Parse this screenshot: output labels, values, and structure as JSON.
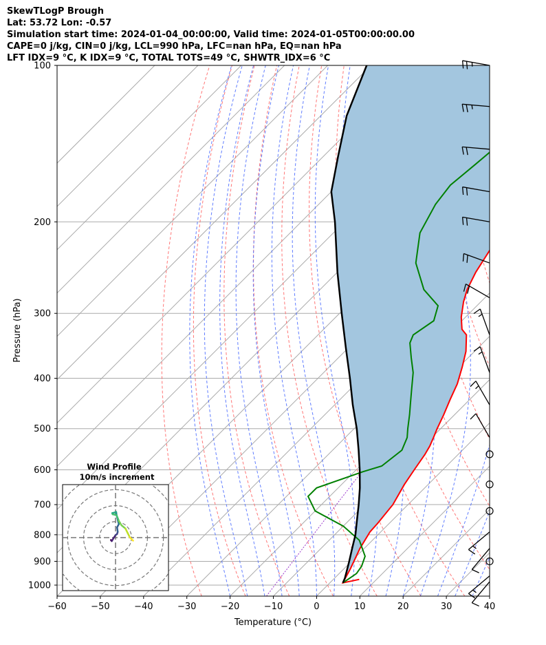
{
  "header": {
    "line1": "SkewTLogP Brough",
    "line2": "Lat: 53.72   Lon: -0.57",
    "line3": "Simulation start time: 2024-01-04_00:00:00, Valid time: 2024-01-05T00:00:00.00",
    "line4": "CAPE=0 j/kg, CIN=0 j/kg, LCL=990 hPa, LFC=nan hPa, EQ=nan hPa",
    "line5": "LFT IDX=9 °C, K IDX=9 °C, TOTAL TOTS=49 °C, SHWTR_IDX=6 °C"
  },
  "chart_data": {
    "type": "line",
    "xlabel": "Temperature (°C)",
    "ylabel": "Pressure (hPa)",
    "xlim": [
      -60,
      40
    ],
    "ylim": [
      1050,
      100
    ],
    "x_ticks": [
      "−60",
      "−50",
      "−40",
      "−30",
      "−20",
      "−10",
      "0",
      "10",
      "20",
      "30",
      "40"
    ],
    "y_ticks": [
      "100",
      "200",
      "300",
      "400",
      "500",
      "600",
      "700",
      "800",
      "900",
      "1000"
    ],
    "y_scale": "log",
    "skew": true,
    "colors": {
      "temperature": "#ff0000",
      "dewpoint": "#008000",
      "parcel": "#000000",
      "cape_fill": "#a3c6df",
      "dry_adiabats": "#ff6666",
      "moist_adiabats": "#4466ff",
      "mixing_ratio": "#9933cc",
      "isotherms": "#aaaaaa",
      "isobars": "#aaaaaa"
    },
    "series": [
      {
        "key": "temperature",
        "points": [
          [
            6,
            975
          ],
          [
            3,
            990
          ],
          [
            1.5,
            930
          ],
          [
            -1,
            850
          ],
          [
            -2.5,
            790
          ],
          [
            -2.7,
            760
          ],
          [
            -3.5,
            700
          ],
          [
            -5.5,
            640
          ],
          [
            -6.6,
            600
          ],
          [
            -7.7,
            560
          ],
          [
            -8.5,
            540
          ],
          [
            -9.6,
            520
          ],
          [
            -10.8,
            500
          ],
          [
            -12.5,
            470
          ],
          [
            -14.5,
            440
          ],
          [
            -16.5,
            410
          ],
          [
            -19.3,
            380
          ],
          [
            -22,
            355
          ],
          [
            -25.7,
            330
          ],
          [
            -28,
            322
          ],
          [
            -31,
            305
          ],
          [
            -34,
            285
          ],
          [
            -36,
            270
          ],
          [
            -38,
            250
          ],
          [
            -40,
            225
          ],
          [
            -41,
            200
          ],
          [
            -43,
            185
          ],
          [
            -45,
            170
          ],
          [
            -47.3,
            150
          ],
          [
            -49,
            135
          ],
          [
            -50.4,
            125
          ],
          [
            -51.5,
            117
          ],
          [
            -52.5,
            110
          ],
          [
            -54,
            100
          ]
        ]
      },
      {
        "key": "dewpoint",
        "points": [
          [
            3,
            990
          ],
          [
            4,
            950
          ],
          [
            3.5,
            920
          ],
          [
            2,
            880
          ],
          [
            -3,
            820
          ],
          [
            -10,
            770
          ],
          [
            -20,
            720
          ],
          [
            -25,
            675
          ],
          [
            -25,
            650
          ],
          [
            -18,
            605
          ],
          [
            -15,
            590
          ],
          [
            -14,
            550
          ],
          [
            -15.7,
            520
          ],
          [
            -17.6,
            500
          ],
          [
            -20.4,
            470
          ],
          [
            -22.5,
            450
          ],
          [
            -25.8,
            420
          ],
          [
            -29.3,
            390
          ],
          [
            -33.2,
            365
          ],
          [
            -36.9,
            342
          ],
          [
            -38,
            330
          ],
          [
            -36.5,
            310
          ],
          [
            -39,
            290
          ],
          [
            -46,
            270
          ],
          [
            -54,
            240
          ],
          [
            -60,
            210
          ],
          [
            -63,
            185
          ],
          [
            -64,
            170
          ],
          [
            -63,
            155
          ],
          [
            -62,
            140
          ],
          [
            -61,
            125
          ],
          [
            -60,
            115
          ],
          [
            -58,
            100
          ]
        ]
      },
      {
        "key": "parcel",
        "points": [
          [
            3,
            990
          ],
          [
            2.4,
            970
          ],
          [
            1.2,
            940
          ],
          [
            -0.5,
            900
          ],
          [
            -2.8,
            850
          ],
          [
            -5.2,
            800
          ],
          [
            -8.2,
            750
          ],
          [
            -11.4,
            700
          ],
          [
            -15,
            650
          ],
          [
            -19.2,
            600
          ],
          [
            -24,
            550
          ],
          [
            -29.4,
            500
          ],
          [
            -35.8,
            450
          ],
          [
            -42.6,
            400
          ],
          [
            -50.5,
            350
          ],
          [
            -59.5,
            300
          ],
          [
            -70,
            250
          ],
          [
            -82.2,
            200
          ],
          [
            -90,
            175
          ],
          [
            -96.5,
            150
          ],
          [
            -104,
            125
          ],
          [
            -111,
            100
          ]
        ]
      }
    ],
    "wind_barbs": [
      {
        "p": 100,
        "speed_kt": 25,
        "dir_deg": 280
      },
      {
        "p": 120,
        "speed_kt": 25,
        "dir_deg": 275
      },
      {
        "p": 145,
        "speed_kt": 20,
        "dir_deg": 275
      },
      {
        "p": 175,
        "speed_kt": 20,
        "dir_deg": 280
      },
      {
        "p": 200,
        "speed_kt": 20,
        "dir_deg": 280
      },
      {
        "p": 240,
        "speed_kt": 20,
        "dir_deg": 290
      },
      {
        "p": 280,
        "speed_kt": 20,
        "dir_deg": 300
      },
      {
        "p": 330,
        "speed_kt": 15,
        "dir_deg": 340
      },
      {
        "p": 390,
        "speed_kt": 15,
        "dir_deg": 340
      },
      {
        "p": 450,
        "speed_kt": 15,
        "dir_deg": 330
      },
      {
        "p": 520,
        "speed_kt": 10,
        "dir_deg": 330
      },
      {
        "p": 560,
        "speed_kt": 0,
        "dir_deg": 0
      },
      {
        "p": 640,
        "speed_kt": 0,
        "dir_deg": 0
      },
      {
        "p": 720,
        "speed_kt": 0,
        "dir_deg": 0
      },
      {
        "p": 790,
        "speed_kt": 15,
        "dir_deg": 230
      },
      {
        "p": 850,
        "speed_kt": 10,
        "dir_deg": 220
      },
      {
        "p": 900,
        "speed_kt": 0,
        "dir_deg": 0
      },
      {
        "p": 960,
        "speed_kt": 15,
        "dir_deg": 230
      },
      {
        "p": 985,
        "speed_kt": 10,
        "dir_deg": 220
      }
    ],
    "hodograph": {
      "title": "Wind Profile",
      "subtitle": "10m/s increment",
      "colormap": "viridis",
      "points": [
        [
          0.4,
          0.8
        ],
        [
          0.6,
          0.5
        ],
        [
          0.8,
          0.3
        ],
        [
          1.5,
          1.5
        ],
        [
          2.5,
          3.0
        ],
        [
          3.2,
          3.5
        ],
        [
          3.5,
          4.5
        ],
        [
          3.2,
          6.5
        ],
        [
          4.0,
          8.0
        ],
        [
          3.5,
          10.0
        ],
        [
          3.0,
          12.0
        ],
        [
          2.8,
          13.5
        ],
        [
          1.0,
          13.0
        ],
        [
          1.2,
          12.5
        ],
        [
          3.0,
          12.0
        ],
        [
          4.0,
          9.5
        ],
        [
          5.2,
          7.5
        ],
        [
          7.0,
          6.0
        ],
        [
          8.0,
          4.0
        ],
        [
          9.0,
          2.0
        ],
        [
          10.5,
          0.5
        ]
      ]
    }
  }
}
